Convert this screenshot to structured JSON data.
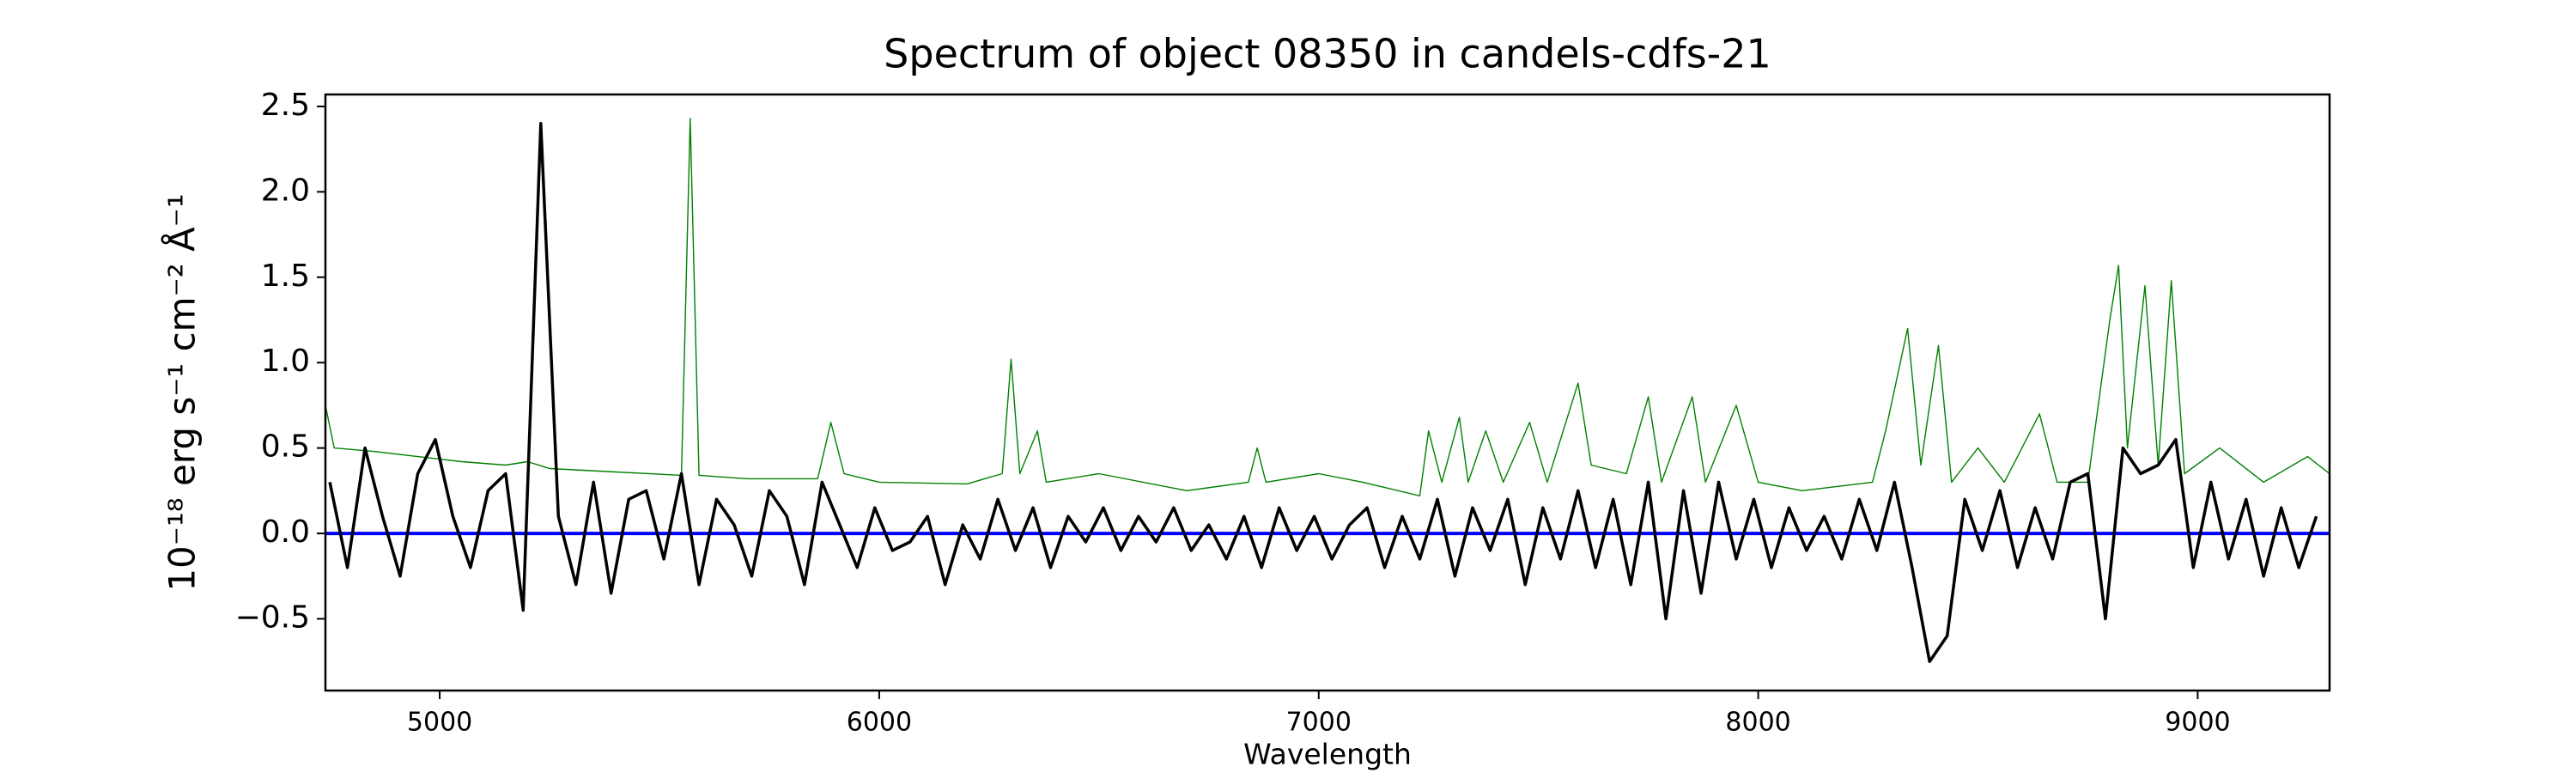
{
  "chart_data": {
    "type": "line",
    "title": "Spectrum of object 08350 in candels-cdfs-21",
    "x_label": "Wavelength",
    "y_label": "10⁻¹⁸ erg s⁻¹ cm⁻² Å⁻¹",
    "xlim": [
      4740,
      9300
    ],
    "ylim": [
      -0.92,
      2.57
    ],
    "xticks": [
      5000,
      6000,
      7000,
      8000,
      9000
    ],
    "yticks": [
      {
        "value": -0.5,
        "label": "−0.5"
      },
      {
        "value": 0,
        "label": "0.0"
      },
      0.5,
      {
        "value": 1,
        "label": "1.0"
      },
      1.5,
      {
        "value": 2,
        "label": "2.0"
      },
      2.5
    ],
    "grid": false,
    "series": [
      {
        "color": "#008000",
        "width": 1.4,
        "x": [
          4740,
          4760,
          4850,
          4950,
          5050,
          5150,
          5200,
          5250,
          5400,
          5550,
          5570,
          5590,
          5700,
          5860,
          5890,
          5920,
          6000,
          6200,
          6280,
          6300,
          6320,
          6360,
          6380,
          6500,
          6700,
          6840,
          6860,
          6880,
          7000,
          7100,
          7230,
          7250,
          7280,
          7320,
          7340,
          7380,
          7420,
          7480,
          7520,
          7590,
          7620,
          7700,
          7750,
          7780,
          7850,
          7880,
          7950,
          8000,
          8100,
          8260,
          8290,
          8340,
          8370,
          8410,
          8440,
          8500,
          8560,
          8640,
          8680,
          8750,
          8800,
          8820,
          8840,
          8880,
          8910,
          8940,
          8970,
          9050,
          9150,
          9250,
          9300
        ],
        "values": [
          0.75,
          0.5,
          0.48,
          0.45,
          0.42,
          0.4,
          0.42,
          0.38,
          0.36,
          0.34,
          2.43,
          0.34,
          0.32,
          0.32,
          0.65,
          0.35,
          0.3,
          0.29,
          0.35,
          1.02,
          0.35,
          0.6,
          0.3,
          0.35,
          0.25,
          0.3,
          0.5,
          0.3,
          0.35,
          0.3,
          0.22,
          0.6,
          0.3,
          0.68,
          0.3,
          0.6,
          0.3,
          0.65,
          0.3,
          0.88,
          0.4,
          0.35,
          0.8,
          0.3,
          0.8,
          0.3,
          0.75,
          0.3,
          0.25,
          0.3,
          0.6,
          1.2,
          0.4,
          1.1,
          0.3,
          0.5,
          0.3,
          0.7,
          0.3,
          0.3,
          1.25,
          1.57,
          0.5,
          1.45,
          0.4,
          1.48,
          0.35,
          0.5,
          0.3,
          0.45,
          0.35
        ]
      },
      {
        "color": "#0000ff",
        "width": 4,
        "x": [
          4740,
          9300
        ],
        "values": [
          0,
          0
        ]
      },
      {
        "color": "#000000",
        "width": 3.5,
        "x": [
          4750,
          4790,
          4830,
          4870,
          4910,
          4950,
          4990,
          5030,
          5070,
          5110,
          5150,
          5190,
          5230,
          5270,
          5310,
          5350,
          5390,
          5430,
          5470,
          5510,
          5550,
          5590,
          5630,
          5670,
          5710,
          5750,
          5790,
          5830,
          5870,
          5910,
          5950,
          5990,
          6030,
          6070,
          6110,
          6150,
          6190,
          6230,
          6270,
          6310,
          6350,
          6390,
          6430,
          6470,
          6510,
          6550,
          6590,
          6630,
          6670,
          6710,
          6750,
          6790,
          6830,
          6870,
          6910,
          6950,
          6990,
          7030,
          7070,
          7110,
          7150,
          7190,
          7230,
          7270,
          7310,
          7350,
          7390,
          7430,
          7470,
          7510,
          7550,
          7590,
          7630,
          7670,
          7710,
          7750,
          7790,
          7830,
          7870,
          7910,
          7950,
          7990,
          8030,
          8070,
          8110,
          8150,
          8190,
          8230,
          8270,
          8310,
          8350,
          8390,
          8430,
          8470,
          8510,
          8550,
          8590,
          8630,
          8670,
          8710,
          8750,
          8790,
          8830,
          8870,
          8910,
          8950,
          8990,
          9030,
          9070,
          9110,
          9150,
          9190,
          9230,
          9270
        ],
        "values": [
          0.3,
          -0.2,
          0.5,
          0.1,
          -0.25,
          0.35,
          0.55,
          0.1,
          -0.2,
          0.25,
          0.35,
          -0.45,
          2.4,
          0.1,
          -0.3,
          0.3,
          -0.35,
          0.2,
          0.25,
          -0.15,
          0.35,
          -0.3,
          0.2,
          0.05,
          -0.25,
          0.25,
          0.1,
          -0.3,
          0.3,
          0.05,
          -0.2,
          0.15,
          -0.1,
          -0.05,
          0.1,
          -0.3,
          0.05,
          -0.15,
          0.2,
          -0.1,
          0.15,
          -0.2,
          0.1,
          -0.05,
          0.15,
          -0.1,
          0.1,
          -0.05,
          0.15,
          -0.1,
          0.05,
          -0.15,
          0.1,
          -0.2,
          0.15,
          -0.1,
          0.1,
          -0.15,
          0.05,
          0.15,
          -0.2,
          0.1,
          -0.15,
          0.2,
          -0.25,
          0.15,
          -0.1,
          0.2,
          -0.3,
          0.15,
          -0.15,
          0.25,
          -0.2,
          0.2,
          -0.3,
          0.3,
          -0.5,
          0.25,
          -0.35,
          0.3,
          -0.15,
          0.2,
          -0.2,
          0.15,
          -0.1,
          0.1,
          -0.15,
          0.2,
          -0.1,
          0.3,
          -0.2,
          -0.75,
          -0.6,
          0.2,
          -0.1,
          0.25,
          -0.2,
          0.15,
          -0.15,
          0.3,
          0.35,
          -0.5,
          0.5,
          0.35,
          0.4,
          0.55,
          -0.2,
          0.3,
          -0.15,
          0.2,
          -0.25,
          0.15,
          -0.2,
          0.1
        ]
      }
    ]
  }
}
